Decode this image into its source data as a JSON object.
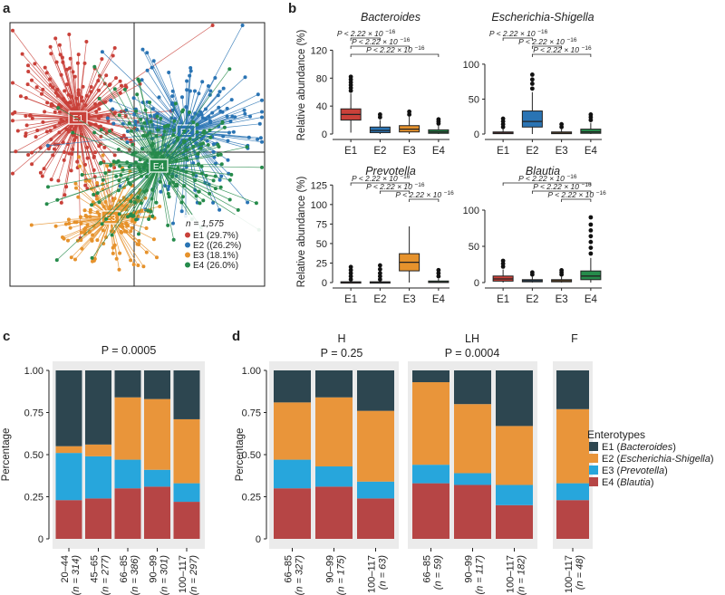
{
  "panels": {
    "a": "a",
    "b": "b",
    "c": "c",
    "d": "d"
  },
  "colors": {
    "E1": "#c9413a",
    "E2": "#2a74b4",
    "E3": "#e6922c",
    "E4": "#268b4b",
    "stack_E1": "#2d4650",
    "stack_E2": "#e9953a",
    "stack_E3": "#27a6dc",
    "stack_E4": "#b64545",
    "panel_bg": "#ebebeb"
  },
  "chart_data": [
    {
      "panel": "a",
      "type": "scatter",
      "cluster_labels": [
        "E1",
        "E2",
        "E4",
        "E3"
      ],
      "legend_n": "n = 1,575",
      "legend": [
        "E1 (29.7%)",
        "E2 ((26.2%)",
        "E3 (18.1%)",
        "E4 (26.0%)"
      ],
      "legend_placement": "bottom-right"
    },
    {
      "panel": "b",
      "type": "box",
      "categories": [
        "E1",
        "E2",
        "E3",
        "E4"
      ],
      "ylabel": "Relative abundance (%)",
      "pvalue_text": "P < 2.22 × 10",
      "pvalue_exp": "−16",
      "subplots": [
        {
          "title": "Bacteroides",
          "ylim": [
            0,
            140
          ],
          "yticks": [
            "0",
            "40",
            "80",
            "120"
          ],
          "ytick_values": [
            0,
            40,
            80,
            120
          ],
          "boxes": [
            {
              "q1": 20,
              "median": 28,
              "q3": 36,
              "whislo": 2,
              "whishi": 58,
              "outliers": [
                62,
                66,
                70,
                74,
                78,
                82
              ]
            },
            {
              "q1": 2,
              "median": 5,
              "q3": 10,
              "whislo": 0,
              "whishi": 20,
              "outliers": [
                24,
                28
              ]
            },
            {
              "q1": 3,
              "median": 7,
              "q3": 12,
              "whislo": 0,
              "whishi": 25,
              "outliers": [
                28,
                32
              ]
            },
            {
              "q1": 1,
              "median": 3,
              "q3": 6,
              "whislo": 0,
              "whishi": 12,
              "outliers": [
                15,
                18,
                21
              ]
            }
          ]
        },
        {
          "title": "Escherichia-Shigella",
          "ylim": [
            0,
            140
          ],
          "yticks": [
            "0",
            "50",
            "100"
          ],
          "ytick_values": [
            0,
            50,
            100
          ],
          "boxes": [
            {
              "q1": 0.5,
              "median": 1.5,
              "q3": 3,
              "whislo": 0,
              "whishi": 7,
              "outliers": [
                10,
                14,
                18,
                22
              ]
            },
            {
              "q1": 10,
              "median": 18,
              "q3": 33,
              "whislo": 0,
              "whishi": 60,
              "outliers": [
                65,
                72,
                78,
                85
              ]
            },
            {
              "q1": 0.5,
              "median": 1.5,
              "q3": 3,
              "whislo": 0,
              "whishi": 7,
              "outliers": [
                10,
                14
              ]
            },
            {
              "q1": 1,
              "median": 3,
              "q3": 7,
              "whislo": 0,
              "whishi": 16,
              "outliers": [
                20,
                24,
                28
              ]
            }
          ]
        },
        {
          "title": "Prevotella",
          "ylim": [
            0,
            130
          ],
          "yticks": [
            "0",
            "25",
            "50",
            "75",
            "100",
            "125"
          ],
          "ytick_values": [
            0,
            25,
            50,
            75,
            100,
            125
          ],
          "boxes": [
            {
              "q1": 0,
              "median": 0.3,
              "q3": 1,
              "whislo": 0,
              "whishi": 2,
              "outliers": [
                4,
                8,
                12,
                16,
                20
              ]
            },
            {
              "q1": 0,
              "median": 0.3,
              "q3": 1,
              "whislo": 0,
              "whishi": 2,
              "outliers": [
                4,
                8,
                12,
                17,
                22
              ]
            },
            {
              "q1": 15,
              "median": 26,
              "q3": 37,
              "whislo": 0,
              "whishi": 72,
              "outliers": []
            },
            {
              "q1": 0,
              "median": 0.5,
              "q3": 2,
              "whislo": 0,
              "whishi": 5,
              "outliers": [
                8,
                12,
                16
              ]
            }
          ]
        },
        {
          "title": "Blautia",
          "ylim": [
            0,
            140
          ],
          "yticks": [
            "0",
            "50",
            "100"
          ],
          "ytick_values": [
            0,
            50,
            100
          ],
          "boxes": [
            {
              "q1": 2,
              "median": 5,
              "q3": 9,
              "whislo": 0,
              "whishi": 18,
              "outliers": [
                22,
                26,
                30
              ]
            },
            {
              "q1": 1,
              "median": 2.5,
              "q3": 4,
              "whislo": 0,
              "whishi": 8,
              "outliers": [
                11,
                14
              ]
            },
            {
              "q1": 1,
              "median": 2.5,
              "q3": 4,
              "whislo": 0,
              "whishi": 8,
              "outliers": [
                11,
                14,
                17
              ]
            },
            {
              "q1": 4,
              "median": 9,
              "q3": 16,
              "whislo": 0,
              "whishi": 34,
              "outliers": [
                40,
                48,
                56,
                64,
                72,
                80,
                90
              ]
            }
          ]
        }
      ]
    },
    {
      "panel": "c",
      "type": "bar",
      "stacked": true,
      "title": "P = 0.0005",
      "ylabel": "Percentage",
      "ylim": [
        0,
        1
      ],
      "yticks": [
        "0",
        "0.25",
        "0.50",
        "0.75",
        "1.00"
      ],
      "ytick_values": [
        0,
        0.25,
        0.5,
        0.75,
        1.0
      ],
      "categories": [
        "20–44",
        "45–65",
        "66–85",
        "90–99",
        "100–117"
      ],
      "n_labels": [
        "(n = 314)",
        "(n = 277)",
        "(n = 386)",
        "(n = 301)",
        "(n = 297)"
      ],
      "series_order": [
        "E4",
        "E3",
        "E2",
        "E1"
      ],
      "values": {
        "E4": [
          0.23,
          0.24,
          0.3,
          0.31,
          0.22
        ],
        "E3": [
          0.28,
          0.25,
          0.17,
          0.1,
          0.11
        ],
        "E2": [
          0.04,
          0.07,
          0.37,
          0.42,
          0.38
        ],
        "E1": [
          0.45,
          0.44,
          0.16,
          0.17,
          0.29
        ]
      }
    },
    {
      "panel": "d",
      "type": "bar",
      "stacked": true,
      "ylabel": "Percentage",
      "ylim": [
        0,
        1
      ],
      "yticks": [
        "0",
        "0.25",
        "0.50",
        "0.75",
        "1.00"
      ],
      "ytick_values": [
        0,
        0.25,
        0.5,
        0.75,
        1.0
      ],
      "series_order": [
        "E4",
        "E3",
        "E2",
        "E1"
      ],
      "groups": [
        {
          "name": "H",
          "pvalue": "P = 0.25",
          "categories": [
            "66–85",
            "90–99",
            "100–117"
          ],
          "n_labels": [
            "(n = 327)",
            "(n = 175)",
            "(n = 63)"
          ],
          "values": {
            "E4": [
              0.3,
              0.31,
              0.24
            ],
            "E3": [
              0.17,
              0.12,
              0.1
            ],
            "E2": [
              0.34,
              0.41,
              0.42
            ],
            "E1": [
              0.19,
              0.16,
              0.24
            ]
          }
        },
        {
          "name": "LH",
          "pvalue": "P = 0.0004",
          "categories": [
            "66–85",
            "90–99",
            "100–117"
          ],
          "n_labels": [
            "(n = 59)",
            "(n = 117)",
            "(n = 182)"
          ],
          "values": {
            "E4": [
              0.33,
              0.32,
              0.2
            ],
            "E3": [
              0.11,
              0.07,
              0.12
            ],
            "E2": [
              0.49,
              0.41,
              0.35
            ],
            "E1": [
              0.07,
              0.2,
              0.33
            ]
          }
        },
        {
          "name": "F",
          "pvalue": "",
          "categories": [
            "100–117"
          ],
          "n_labels": [
            "(n = 48)"
          ],
          "values": {
            "E4": [
              0.23
            ],
            "E3": [
              0.1
            ],
            "E2": [
              0.44
            ],
            "E1": [
              0.23
            ]
          }
        }
      ],
      "legend_title": "Enterotypes",
      "legend": [
        {
          "key": "E1",
          "prefix": "E1 (",
          "genus": "Bacteroides",
          "suffix": ")"
        },
        {
          "key": "E2",
          "prefix": "E2 (",
          "genus": "Escherichia-Shigella",
          "suffix": ")"
        },
        {
          "key": "E3",
          "prefix": "E3 (",
          "genus": "Prevotella",
          "suffix": ")"
        },
        {
          "key": "E4",
          "prefix": "E4 (",
          "genus": "Blautia",
          "suffix": ")"
        }
      ]
    }
  ]
}
